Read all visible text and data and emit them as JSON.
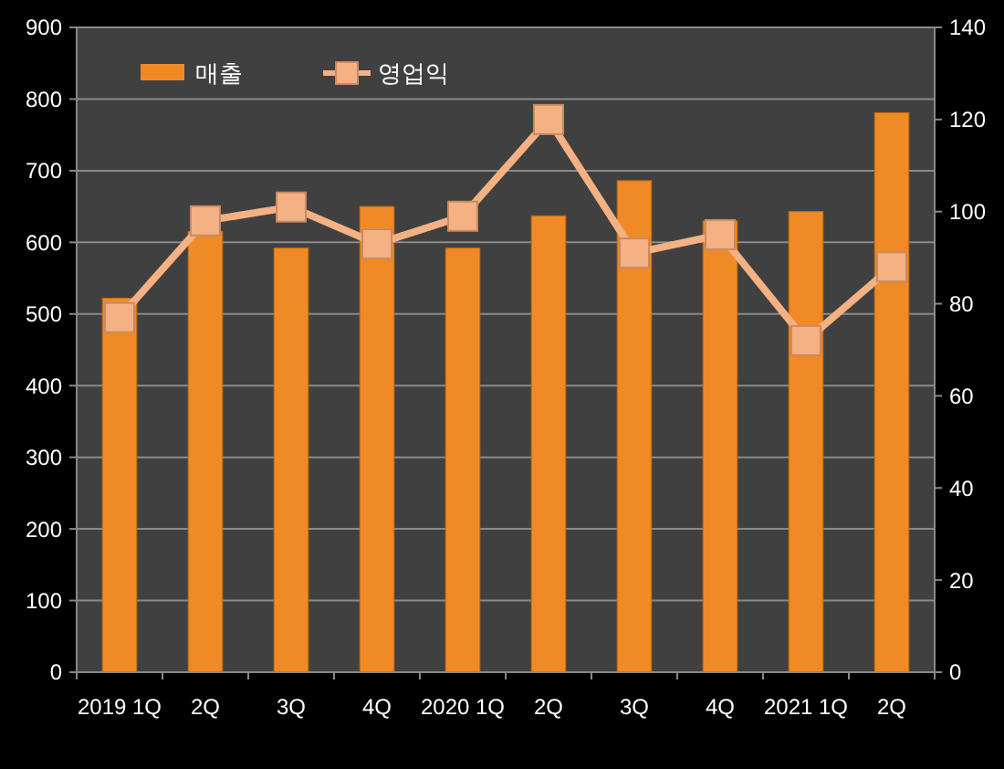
{
  "chart_data": {
    "type": "bar",
    "categories": [
      "2019 1Q",
      "2Q",
      "3Q",
      "4Q",
      "2020 1Q",
      "2Q",
      "3Q",
      "4Q",
      "2021 1Q",
      "2Q"
    ],
    "series": [
      {
        "name": "매출",
        "color": "#f08a24",
        "values": [
          522,
          615,
          592,
          650,
          592,
          637,
          686,
          630,
          643,
          781
        ]
      },
      {
        "name": "영업익",
        "type": "line",
        "axis": "y2",
        "color": "#f4b183",
        "marker": "square",
        "values": [
          77,
          98,
          101,
          93,
          99,
          120,
          91,
          95,
          72,
          88
        ]
      }
    ],
    "ylim": [
      0,
      900
    ],
    "yticks": [
      0,
      100,
      200,
      300,
      400,
      500,
      600,
      700,
      800,
      900
    ],
    "y2lim": [
      0,
      140
    ],
    "y2ticks": [
      0,
      20,
      40,
      60,
      80,
      100,
      120,
      140
    ],
    "grid": "y",
    "legend": "top left"
  }
}
